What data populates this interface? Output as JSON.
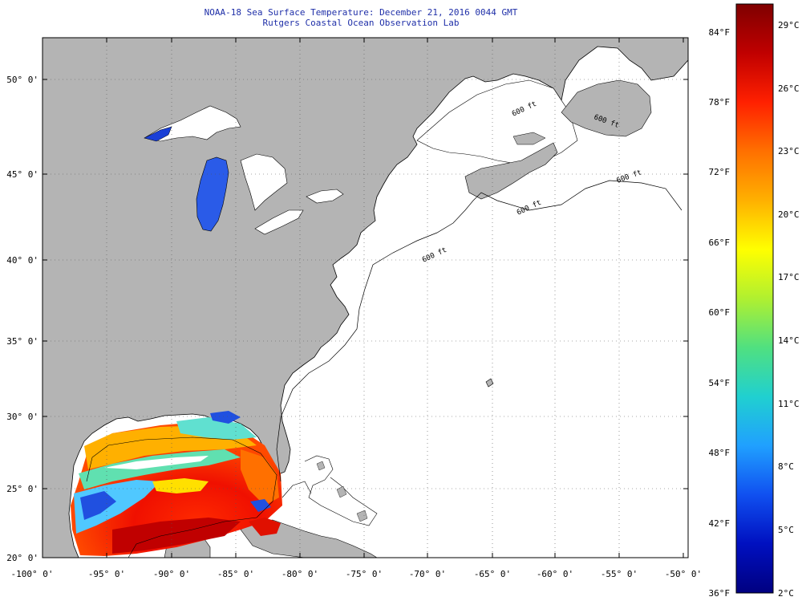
{
  "header": {
    "title": "NOAA-18 Sea Surface Temperature:  December 21, 2016 0044 GMT",
    "subtitle": "Rutgers Coastal Ocean Observation Lab"
  },
  "map": {
    "lon_labels": [
      "-100° 0'",
      "-95° 0'",
      "-90° 0'",
      "-85° 0'",
      "-80° 0'",
      "-75° 0'",
      "-70° 0'",
      "-65° 0'",
      "-60° 0'",
      "-55° 0'",
      "-50° 0'"
    ],
    "lat_labels": [
      "20° 0'",
      "25° 0'",
      "30° 0'",
      "35° 0'",
      "40° 0'",
      "45° 0'",
      "50° 0'"
    ],
    "depth_labels": [
      "600 ft",
      "600 ft",
      "600 ft",
      "600 ft",
      "600 ft"
    ],
    "colors": {
      "land": "#b4b4b4",
      "ocean": "#ffffff",
      "frame": "#000000",
      "grid": "#444444"
    }
  },
  "colorbar": {
    "fahrenheit_labels": [
      "84°F",
      "78°F",
      "72°F",
      "66°F",
      "60°F",
      "54°F",
      "48°F",
      "42°F",
      "36°F"
    ],
    "celsius_labels": [
      "29°C",
      "26°C",
      "23°C",
      "20°C",
      "17°C",
      "14°C",
      "11°C",
      "8°C",
      "5°C",
      "2°C"
    ],
    "gradient": [
      "#7f0000",
      "#c00000",
      "#ff2000",
      "#ff7000",
      "#ffb000",
      "#ffff00",
      "#b0f030",
      "#50e080",
      "#20d0d0",
      "#20a0ff",
      "#1050f0",
      "#0010c0",
      "#000080"
    ]
  }
}
